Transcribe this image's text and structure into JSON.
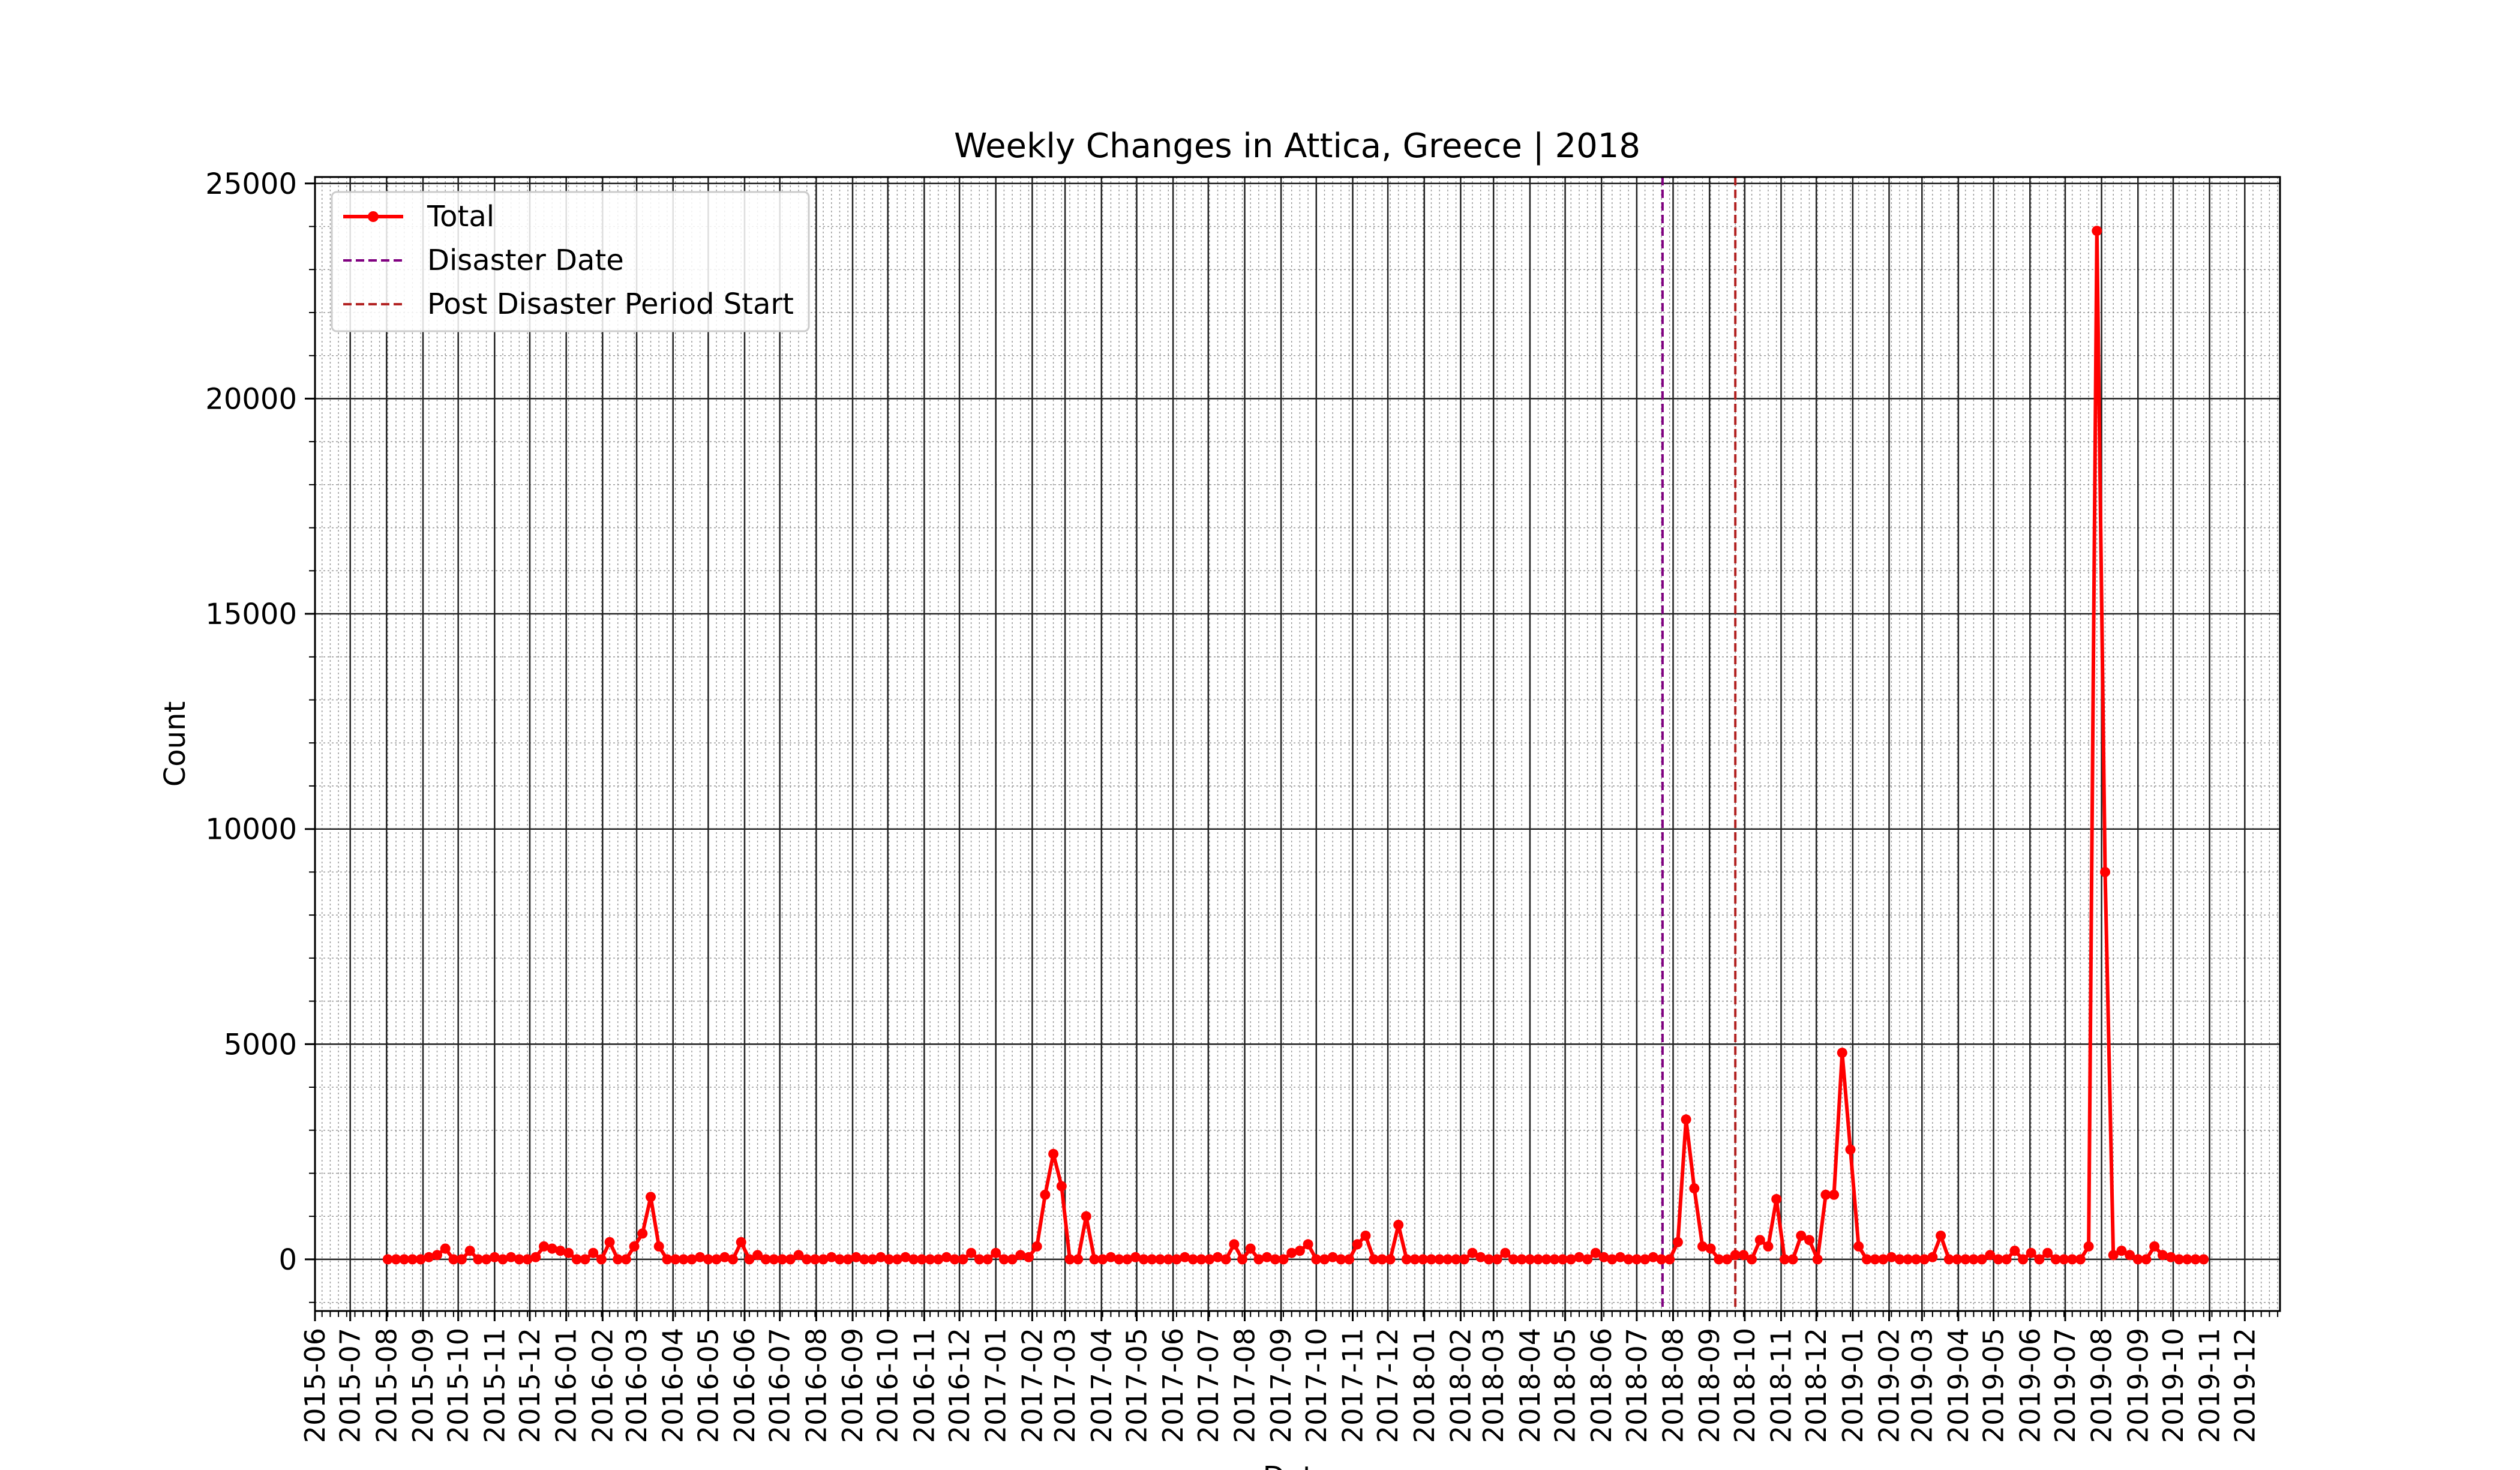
{
  "chart_data": {
    "type": "line",
    "title": "Weekly Changes in Attica, Greece | 2018",
    "xlabel": "Date",
    "ylabel": "Count",
    "ylim": [
      -1200,
      25150
    ],
    "xlim": [
      "2015-06-01",
      "2019-12-31"
    ],
    "yticks": [
      0,
      5000,
      10000,
      15000,
      20000,
      25000
    ],
    "xticks": [
      "2015-06",
      "2015-07",
      "2015-08",
      "2015-09",
      "2015-10",
      "2015-11",
      "2015-12",
      "2016-01",
      "2016-02",
      "2016-03",
      "2016-04",
      "2016-05",
      "2016-06",
      "2016-07",
      "2016-08",
      "2016-09",
      "2016-10",
      "2016-11",
      "2016-12",
      "2017-01",
      "2017-02",
      "2017-03",
      "2017-04",
      "2017-05",
      "2017-06",
      "2017-07",
      "2017-08",
      "2017-09",
      "2017-10",
      "2017-11",
      "2017-12",
      "2018-01",
      "2018-02",
      "2018-03",
      "2018-04",
      "2018-05",
      "2018-06",
      "2018-07",
      "2018-08",
      "2018-09",
      "2018-10",
      "2018-11",
      "2018-12",
      "2019-01",
      "2019-02",
      "2019-03",
      "2019-04",
      "2019-05",
      "2019-06",
      "2019-07",
      "2019-08",
      "2019-09",
      "2019-10",
      "2019-11",
      "2019-12"
    ],
    "grid": true,
    "legend_position": "upper-left",
    "colors": {
      "total": "#ff0000",
      "disaster": "#800080",
      "post": "#b22222"
    },
    "legend": [
      "Total",
      "Disaster Date",
      "Post Disaster Period Start"
    ],
    "vlines": [
      {
        "name": "Disaster Date",
        "x": "2018-07-23"
      },
      {
        "name": "Post Disaster Period Start",
        "x": "2018-09-23"
      }
    ],
    "series": [
      {
        "name": "Total",
        "start": "2015-08-02",
        "interval_days": 7,
        "values": [
          0,
          0,
          0,
          0,
          0,
          50,
          100,
          250,
          0,
          0,
          200,
          0,
          0,
          50,
          0,
          50,
          0,
          0,
          50,
          300,
          250,
          200,
          150,
          0,
          0,
          150,
          0,
          400,
          0,
          0,
          300,
          600,
          1450,
          300,
          0,
          0,
          0,
          0,
          50,
          0,
          0,
          50,
          0,
          400,
          0,
          100,
          0,
          0,
          0,
          0,
          100,
          0,
          0,
          0,
          50,
          0,
          0,
          50,
          0,
          0,
          50,
          0,
          0,
          50,
          0,
          0,
          0,
          0,
          50,
          0,
          0,
          150,
          0,
          0,
          150,
          0,
          0,
          100,
          50,
          300,
          1500,
          2450,
          1700,
          0,
          0,
          1000,
          0,
          0,
          50,
          0,
          0,
          50,
          0,
          0,
          0,
          0,
          0,
          50,
          0,
          0,
          0,
          50,
          0,
          350,
          0,
          250,
          0,
          50,
          0,
          0,
          150,
          200,
          350,
          0,
          0,
          50,
          0,
          0,
          350,
          550,
          0,
          0,
          0,
          800,
          0,
          0,
          0,
          0,
          0,
          0,
          0,
          0,
          150,
          50,
          0,
          0,
          150,
          0,
          0,
          0,
          0,
          0,
          0,
          0,
          0,
          50,
          0,
          150,
          50,
          0,
          50,
          0,
          0,
          0,
          50,
          0,
          0,
          400,
          3250,
          1650,
          300,
          250,
          0,
          0,
          100,
          100,
          0,
          450,
          300,
          1400,
          0,
          0,
          550,
          450,
          0,
          1500,
          1500,
          4800,
          2550,
          300,
          0,
          0,
          0,
          50,
          0,
          0,
          0,
          0,
          50,
          550,
          0,
          0,
          0,
          0,
          0,
          100,
          0,
          0,
          200,
          0,
          150,
          0,
          150,
          0,
          0,
          0,
          0,
          300,
          23900,
          9000,
          100,
          200,
          100,
          0,
          0,
          300,
          100,
          50,
          0,
          0,
          0,
          0
        ]
      }
    ]
  }
}
